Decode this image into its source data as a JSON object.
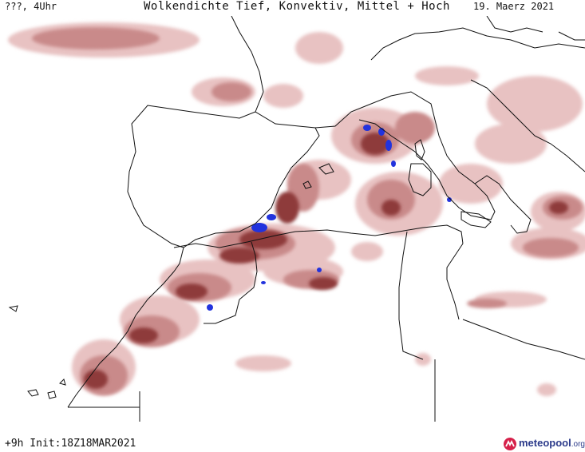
{
  "header": {
    "left_text": "???, 4Uhr",
    "title": "Wolkendichte  Tief, Konvektiv, Mittel + Hoch",
    "date": "19. Maerz 2021"
  },
  "footer": {
    "init_text": "+9h  Init:18Z18MAR2021",
    "logo_main": "meteopool",
    "logo_suffix": ".org"
  },
  "colors": {
    "cloud_light": "#e8c2c2",
    "cloud_mid": "#c98a8a",
    "cloud_dark": "#8e3a3a",
    "convective": "#2233dd",
    "coastline": "#111111",
    "logo_blue": "#2b3a8a",
    "logo_red": "#d6204a"
  },
  "icons": {
    "logo": "meteopool-logo-icon"
  }
}
